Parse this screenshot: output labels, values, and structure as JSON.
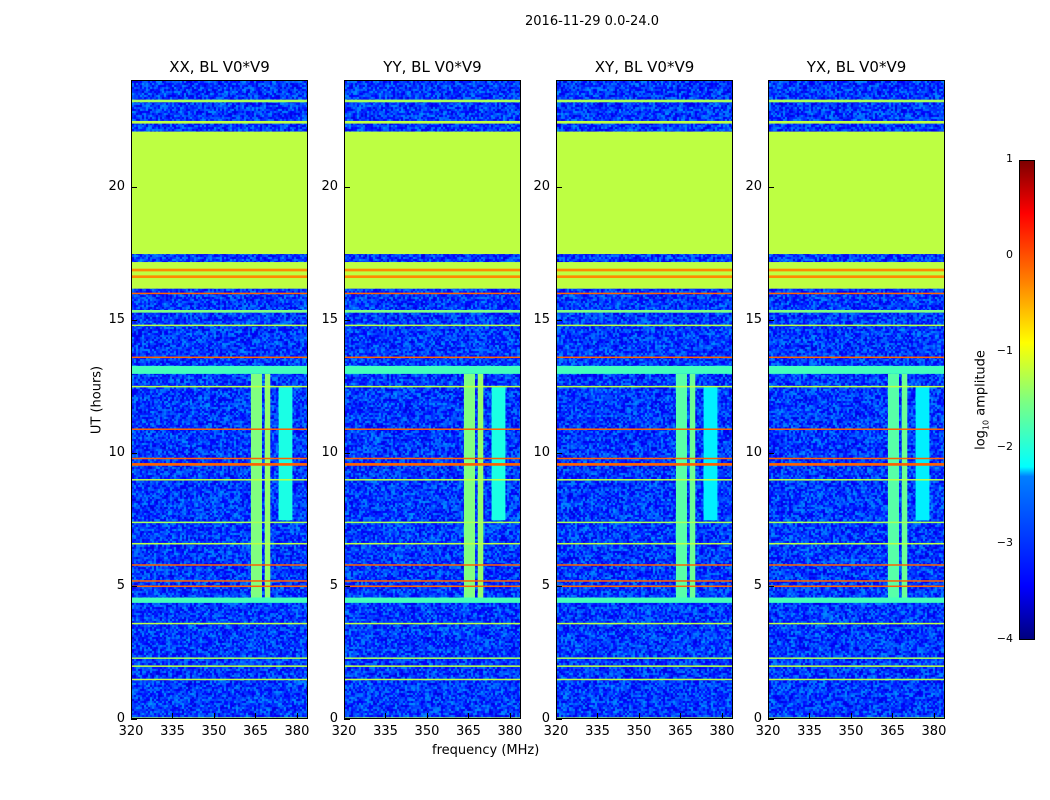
{
  "suptitle": "2016-11-29 0.0-24.0",
  "chart_data": {
    "type": "heatmap",
    "title": "2016-11-29 0.0-24.0",
    "xlabel": "frequency (MHz)",
    "ylabel": "UT (hours)",
    "xlim": [
      320,
      384
    ],
    "ylim": [
      0,
      24
    ],
    "xticks": [
      "320",
      "335",
      "350",
      "365",
      "380"
    ],
    "yticks": [
      "0",
      "5",
      "10",
      "15",
      "20"
    ],
    "panels": [
      {
        "title": "XX, BL V0*V9"
      },
      {
        "title": "YY, BL V0*V9"
      },
      {
        "title": "XY, BL V0*V9"
      },
      {
        "title": "YX, BL V0*V9"
      }
    ],
    "background_level": -3.1,
    "horizontal_bands": [
      {
        "ut": [
          17.5,
          22.1
        ],
        "level": -1.2
      },
      {
        "ut": [
          22.4,
          22.5
        ],
        "level": -1.2
      },
      {
        "ut": [
          23.2,
          23.3
        ],
        "level": -1.3
      },
      {
        "ut": [
          16.2,
          17.2
        ],
        "level": -1.2
      },
      {
        "ut": [
          16.6,
          16.7
        ],
        "level": -0.3
      },
      {
        "ut": [
          16.85,
          16.95
        ],
        "level": -0.3
      },
      {
        "ut": [
          16.0,
          16.05
        ],
        "level": -0.1
      },
      {
        "ut": [
          15.3,
          15.4
        ],
        "level": -1.5
      },
      {
        "ut": [
          14.8,
          14.85
        ],
        "level": -1.2
      },
      {
        "ut": [
          13.6,
          13.65
        ],
        "level": -0.1
      },
      {
        "ut": [
          13.0,
          13.3
        ],
        "level": -1.8
      },
      {
        "ut": [
          12.5,
          12.55
        ],
        "level": -1.2
      },
      {
        "ut": [
          10.9,
          10.95
        ],
        "level": -0.1
      },
      {
        "ut": [
          9.8,
          9.85
        ],
        "level": -0.1
      },
      {
        "ut": [
          9.55,
          9.65
        ],
        "level": -0.1
      },
      {
        "ut": [
          9.0,
          9.05
        ],
        "level": -1.2
      },
      {
        "ut": [
          7.4,
          7.45
        ],
        "level": -1.3
      },
      {
        "ut": [
          6.6,
          6.65
        ],
        "level": -1.2
      },
      {
        "ut": [
          5.8,
          5.85
        ],
        "level": -0.1
      },
      {
        "ut": [
          5.2,
          5.25
        ],
        "level": -0.1
      },
      {
        "ut": [
          5.0,
          5.05
        ],
        "level": -0.1
      },
      {
        "ut": [
          4.4,
          4.6
        ],
        "level": -1.8
      },
      {
        "ut": [
          3.6,
          3.65
        ],
        "level": -1.2
      },
      {
        "ut": [
          2.3,
          2.35
        ],
        "level": -1.3
      },
      {
        "ut": [
          2.0,
          2.05
        ],
        "level": -1.2
      },
      {
        "ut": [
          1.5,
          1.55
        ],
        "level": -1.2
      },
      {
        "ut": [
          0,
          0.1
        ],
        "level": -1.3
      }
    ],
    "rfi_blocks": [
      {
        "freq": [
          363,
          367
        ],
        "ut": [
          4.5,
          13.0
        ],
        "level": -1.5
      },
      {
        "freq": [
          368,
          370
        ],
        "ut": [
          4.5,
          13.0
        ],
        "level": -1.4
      },
      {
        "freq": [
          373,
          378
        ],
        "ut": [
          7.5,
          12.5
        ],
        "level": -2.0
      }
    ],
    "colorbar": {
      "label_prefix": "log",
      "label_sub": "10",
      "label_suffix": " amplitude",
      "ticks": [
        "1",
        "0",
        "−1",
        "−2",
        "−3",
        "−4"
      ],
      "range": [
        -4,
        1
      ],
      "colormap": "jet"
    }
  }
}
